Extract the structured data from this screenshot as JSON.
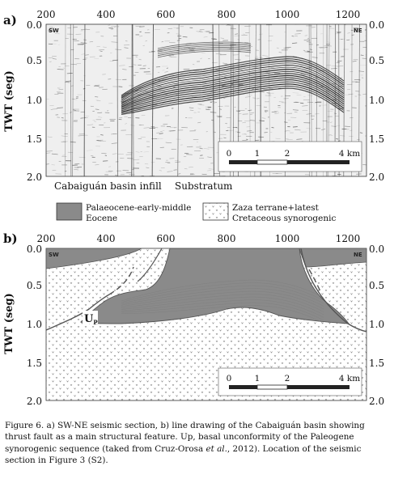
{
  "panel_a": {
    "label": "a)",
    "x_ticks": [
      "200",
      "400",
      "600",
      "800",
      "1000",
      "1200"
    ],
    "y_ticks": [
      "0.0",
      "0.5",
      "1.0",
      "1.5",
      "2.0"
    ],
    "y_title": "TWT (seg)",
    "corner_left": "SW",
    "corner_right": "NE",
    "scale_ticks": [
      "0",
      "1",
      "2",
      "4 km"
    ],
    "bottom_labels": [
      "Cabaiguán basin infill",
      "Substratum"
    ]
  },
  "legend": {
    "item1": [
      "Palaeocene-early-middle",
      "Eocene"
    ],
    "item2": [
      "Zaza terrane+latest",
      "Cretaceous synorogenic"
    ],
    "item1_color": "#8a8a8a",
    "item2_color": "#ffffff"
  },
  "panel_b": {
    "label": "b)",
    "x_ticks": [
      "200",
      "400",
      "600",
      "800",
      "1000",
      "1200"
    ],
    "y_ticks": [
      "0.0",
      "0.5",
      "1.0",
      "1.5",
      "2.0"
    ],
    "y_title": "TWT (seg)",
    "corner_left": "SW",
    "corner_right": "NE",
    "unconformity_label": "U",
    "unconformity_sub": "P",
    "scale_ticks": [
      "0",
      "1",
      "2",
      "4 km"
    ],
    "fill_color": "#8a8a8a"
  },
  "caption": {
    "parts": [
      "Figure 6. a) SW-NE seismic section, b) line drawing of the Cabaiguán basin showing thrust fault as a main structural feature. Up, basal unconformity of the Paleogene synorogenic sequence (taked from Cruz-Orosa ",
      "et al",
      "., 2012). Location of the seismic section in Figure 3 (S2)."
    ]
  }
}
